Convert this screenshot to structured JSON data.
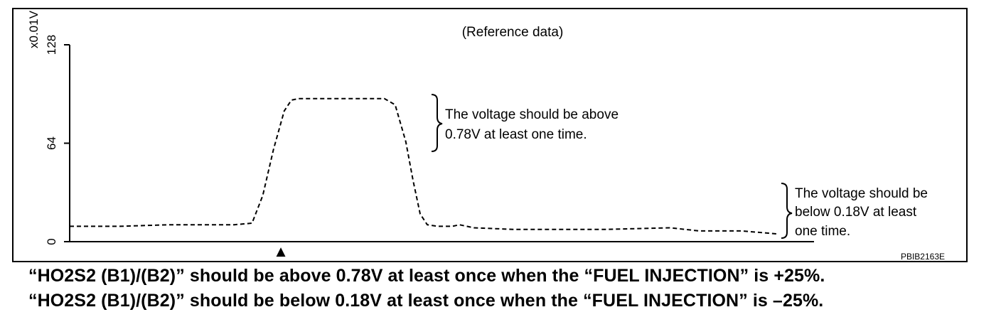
{
  "chart_data": {
    "type": "line",
    "title": "(Reference data)",
    "ylabel": "x0.01V",
    "ylim": [
      0,
      128
    ],
    "y_ticks": [
      "0",
      "64",
      "128"
    ],
    "grid": false,
    "series": [
      {
        "style": "dashed",
        "points": [
          [
            0,
            10
          ],
          [
            14,
            10
          ],
          [
            28,
            11
          ],
          [
            46,
            11
          ],
          [
            51,
            12
          ],
          [
            54,
            30
          ],
          [
            57,
            60
          ],
          [
            60,
            85
          ],
          [
            62,
            92
          ],
          [
            64,
            93
          ],
          [
            76,
            93
          ],
          [
            88,
            93
          ],
          [
            91,
            89
          ],
          [
            94,
            65
          ],
          [
            96,
            40
          ],
          [
            98,
            18
          ],
          [
            100,
            11
          ],
          [
            103,
            10
          ],
          [
            107,
            10
          ],
          [
            109,
            11
          ],
          [
            113,
            9
          ],
          [
            124,
            8
          ],
          [
            150,
            8
          ],
          [
            168,
            9
          ],
          [
            176,
            7
          ],
          [
            188,
            7
          ],
          [
            198,
            5
          ]
        ]
      }
    ],
    "marker_label": "▲",
    "annotations": [
      "The voltage should be above",
      "0.78V at least one time.",
      "The voltage should be",
      "below 0.18V at least",
      "one time."
    ],
    "figure_id": "PBIB2163E"
  },
  "captions": [
    "“HO2S2 (B1)/(B2)” should be above 0.78V at least once when the “FUEL INJECTION” is +25%.",
    "“HO2S2 (B1)/(B2)” should be below 0.18V at least once when the “FUEL INJECTION” is –25%."
  ]
}
